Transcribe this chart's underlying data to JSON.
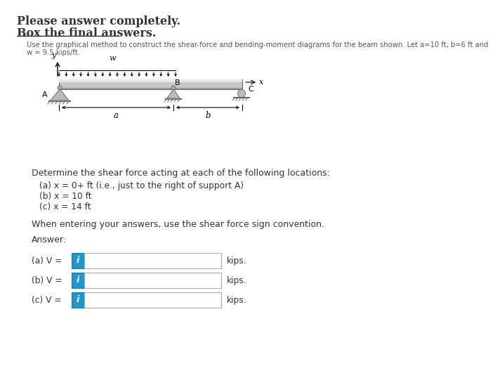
{
  "title_line1": "Please answer completely.",
  "title_line2": "Box the final answers.",
  "problem_text_line1": "Use the graphical method to construct the shear-force and bending-moment diagrams for the beam shown. Let a=10 ft, b=6 ft and",
  "problem_text_line2": "w = 9.5 kips/ft.",
  "determine_text": "Determine the shear force acting at each of the following locations:",
  "items": [
    "(a) x = 0+ ft (i.e., just to the right of support A)",
    "(b) x = 10 ft",
    "(c) x = 14 ft"
  ],
  "convention_text": "When entering your answers, use the shear force sign convention.",
  "answer_label": "Answer:",
  "answer_rows": [
    {
      "label": "(a) V = ",
      "unit": "kips."
    },
    {
      "label": "(b) V = ",
      "unit": "kips."
    },
    {
      "label": "(c) V = ",
      "unit": "kips."
    }
  ],
  "icon_color": "#2196c9",
  "icon_text": "i",
  "bg_color": "#ffffff",
  "input_box_color": "#ffffff",
  "input_box_border": "#aaaaaa",
  "text_color_dark": "#333333",
  "text_color_problem": "#555555"
}
